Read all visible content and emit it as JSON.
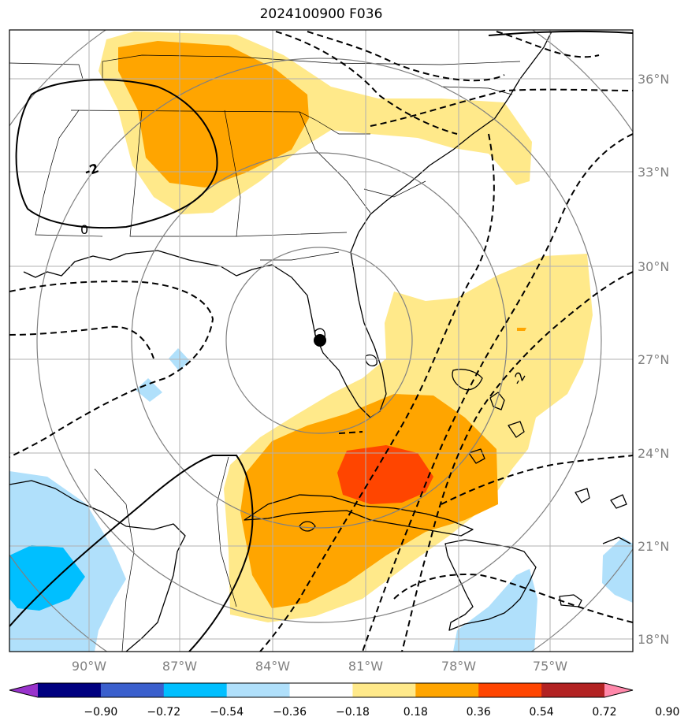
{
  "title": "2024100900 F036",
  "lon_ticks": [
    "90°W",
    "87°W",
    "84°W",
    "81°W",
    "78°W",
    "75°W"
  ],
  "lat_ticks": [
    "36°N",
    "33°N",
    "30°N",
    "27°N",
    "24°N",
    "21°N",
    "18°N"
  ],
  "colorbar": {
    "labels": [
      "−0.90",
      "−0.72",
      "−0.54",
      "−0.36",
      "−0.18",
      "0.18",
      "0.36",
      "0.54",
      "0.72",
      "0.90"
    ],
    "colors": [
      "#9933cc",
      "#000080",
      "#3a5fcd",
      "#00bfff",
      "#b0e0fb",
      "#ffffff",
      "#ffe98a",
      "#ffa500",
      "#ff4500",
      "#b22222",
      "#ff88aa"
    ]
  },
  "contour_labels": [
    "-2",
    "0",
    "-2"
  ],
  "marker": "point-marker"
}
